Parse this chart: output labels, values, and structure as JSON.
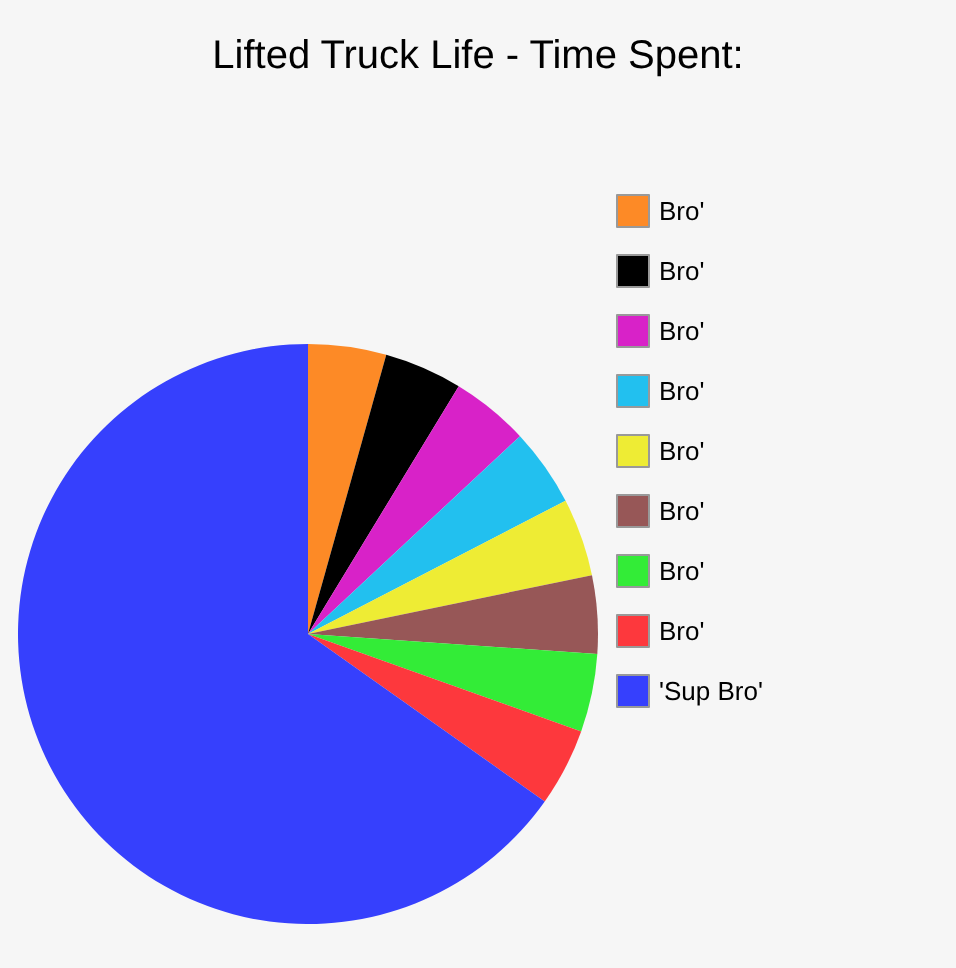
{
  "chart_data": {
    "type": "pie",
    "title": "Lifted Truck Life - Time Spent:",
    "categories": [
      "Bro'",
      "Bro'",
      "Bro'",
      "Bro'",
      "Bro'",
      "Bro'",
      "Bro'",
      "Bro'",
      "'Sup Bro'"
    ],
    "values": [
      4.35,
      4.35,
      4.35,
      4.35,
      4.35,
      4.35,
      4.35,
      4.35,
      65.2
    ],
    "colors": [
      "#fd8a26",
      "#000000",
      "#d822c8",
      "#22c0ef",
      "#eeec34",
      "#975757",
      "#33ec37",
      "#fd383d",
      "#3640fd"
    ],
    "legend": "top right"
  }
}
